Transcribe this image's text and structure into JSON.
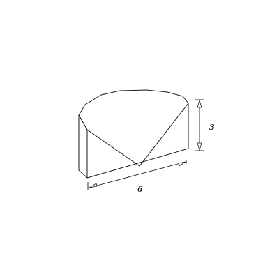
{
  "diagram": {
    "dimensions": {
      "length": "6",
      "height": "3"
    }
  }
}
